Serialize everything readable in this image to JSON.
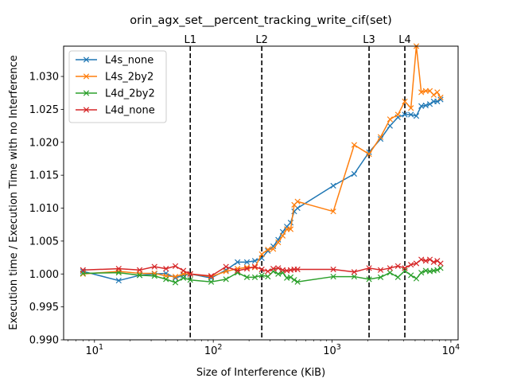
{
  "chart_data": {
    "type": "line",
    "title": "orin_agx_set__percent_tracking_write_cif(set)",
    "xlabel": "Size of Interference (KiB)",
    "ylabel": "Execution time / Execution Time with no Interference",
    "xscale": "log",
    "xlim": [
      5.5,
      11500
    ],
    "ylim": [
      0.99,
      1.0346
    ],
    "yticks": [
      "0.990",
      "0.995",
      "1.000",
      "1.005",
      "1.010",
      "1.015",
      "1.020",
      "1.025",
      "1.030"
    ],
    "xticks": [
      {
        "value": 10,
        "base": "10",
        "exp": "1"
      },
      {
        "value": 100,
        "base": "10",
        "exp": "2"
      },
      {
        "value": 1000,
        "base": "10",
        "exp": "3"
      },
      {
        "value": 10000,
        "base": "10",
        "exp": "4"
      }
    ],
    "grid": false,
    "legend_position": "top-left",
    "vlines": [
      {
        "label": "L1",
        "x": 64
      },
      {
        "label": "L2",
        "x": 256
      },
      {
        "label": "L3",
        "x": 2048
      },
      {
        "label": "L4",
        "x": 4096
      }
    ],
    "series": [
      {
        "name": "L4s_none",
        "color": "#1f77b4",
        "marker": "x",
        "points": [
          [
            8,
            1.0004
          ],
          [
            16,
            0.999
          ],
          [
            24,
            0.9998
          ],
          [
            32,
            1.0
          ],
          [
            40,
            1.0001
          ],
          [
            48,
            0.9994
          ],
          [
            56,
            0.9998
          ],
          [
            64,
            1.0
          ],
          [
            96,
            0.9994
          ],
          [
            128,
            1.0006
          ],
          [
            160,
            1.0018
          ],
          [
            192,
            1.0018
          ],
          [
            224,
            1.002
          ],
          [
            256,
            1.0024
          ],
          [
            288,
            1.0035
          ],
          [
            320,
            1.0042
          ],
          [
            352,
            1.0052
          ],
          [
            384,
            1.0064
          ],
          [
            416,
            1.0072
          ],
          [
            448,
            1.0078
          ],
          [
            480,
            1.0095
          ],
          [
            512,
            1.01
          ],
          [
            1024,
            1.0134
          ],
          [
            1536,
            1.0152
          ],
          [
            2048,
            1.0185
          ],
          [
            2560,
            1.0205
          ],
          [
            3072,
            1.0225
          ],
          [
            3584,
            1.0238
          ],
          [
            4096,
            1.0242
          ],
          [
            4608,
            1.0242
          ],
          [
            5120,
            1.024
          ],
          [
            5632,
            1.0255
          ],
          [
            6144,
            1.0256
          ],
          [
            6656,
            1.0258
          ],
          [
            7168,
            1.0262
          ],
          [
            7680,
            1.0262
          ],
          [
            8192,
            1.0265
          ]
        ]
      },
      {
        "name": "L4s_2by2",
        "color": "#ff7f0e",
        "marker": "x",
        "points": [
          [
            8,
            1.0
          ],
          [
            16,
            1.0004
          ],
          [
            24,
            1.0001
          ],
          [
            32,
            1.0001
          ],
          [
            40,
            0.9997
          ],
          [
            48,
            0.9996
          ],
          [
            56,
            1.0
          ],
          [
            64,
            1.0
          ],
          [
            96,
            0.9996
          ],
          [
            128,
            1.0004
          ],
          [
            160,
            1.0008
          ],
          [
            192,
            1.001
          ],
          [
            224,
            1.001
          ],
          [
            256,
            1.003
          ],
          [
            288,
            1.0037
          ],
          [
            320,
            1.0038
          ],
          [
            352,
            1.0048
          ],
          [
            384,
            1.0058
          ],
          [
            416,
            1.0068
          ],
          [
            448,
            1.0068
          ],
          [
            480,
            1.0105
          ],
          [
            512,
            1.011
          ],
          [
            1024,
            1.0095
          ],
          [
            1536,
            1.0196
          ],
          [
            2048,
            1.0182
          ],
          [
            2560,
            1.0208
          ],
          [
            3072,
            1.0235
          ],
          [
            3584,
            1.0242
          ],
          [
            4096,
            1.0262
          ],
          [
            4608,
            1.0252
          ],
          [
            5120,
            1.0346
          ],
          [
            5632,
            1.0276
          ],
          [
            6144,
            1.0278
          ],
          [
            6656,
            1.0278
          ],
          [
            7168,
            1.0272
          ],
          [
            7680,
            1.0276
          ],
          [
            8192,
            1.0268
          ]
        ]
      },
      {
        "name": "L4d_2by2",
        "color": "#2ca02c",
        "marker": "x",
        "points": [
          [
            8,
            1.0001
          ],
          [
            16,
            1.0002
          ],
          [
            24,
            0.9998
          ],
          [
            32,
            0.9997
          ],
          [
            40,
            0.9992
          ],
          [
            48,
            0.9987
          ],
          [
            56,
            0.9994
          ],
          [
            64,
            0.9991
          ],
          [
            96,
            0.9988
          ],
          [
            128,
            0.9992
          ],
          [
            160,
            1.0002
          ],
          [
            192,
            0.9995
          ],
          [
            224,
            0.9995
          ],
          [
            256,
            0.9998
          ],
          [
            288,
            0.9996
          ],
          [
            320,
            1.0004
          ],
          [
            352,
            1.0
          ],
          [
            384,
            1.0002
          ],
          [
            416,
            0.9994
          ],
          [
            448,
            0.9995
          ],
          [
            480,
            0.9991
          ],
          [
            512,
            0.9988
          ],
          [
            1024,
            0.9996
          ],
          [
            1536,
            0.9996
          ],
          [
            2048,
            0.9992
          ],
          [
            2560,
            0.9995
          ],
          [
            3072,
            1.0002
          ],
          [
            3584,
            0.9995
          ],
          [
            4096,
            1.0005
          ],
          [
            4608,
            0.9998
          ],
          [
            5120,
            0.9993
          ],
          [
            5632,
            1.0002
          ],
          [
            6144,
            1.0005
          ],
          [
            6656,
            1.0004
          ],
          [
            7168,
            1.0005
          ],
          [
            7680,
            1.0006
          ],
          [
            8192,
            1.0009
          ]
        ]
      },
      {
        "name": "L4d_none",
        "color": "#d62728",
        "marker": "x",
        "points": [
          [
            8,
            1.0006
          ],
          [
            16,
            1.0008
          ],
          [
            24,
            1.0006
          ],
          [
            32,
            1.0011
          ],
          [
            40,
            1.0008
          ],
          [
            48,
            1.0012
          ],
          [
            56,
            1.0005
          ],
          [
            64,
            1.0
          ],
          [
            96,
            0.9997
          ],
          [
            128,
            1.0011
          ],
          [
            160,
            1.0005
          ],
          [
            192,
            1.0008
          ],
          [
            224,
            1.0011
          ],
          [
            256,
            1.0007
          ],
          [
            288,
            1.0004
          ],
          [
            320,
            1.0008
          ],
          [
            352,
            1.0009
          ],
          [
            384,
            1.0006
          ],
          [
            416,
            1.0005
          ],
          [
            448,
            1.0006
          ],
          [
            480,
            1.0007
          ],
          [
            512,
            1.0007
          ],
          [
            1024,
            1.0007
          ],
          [
            1536,
            1.0003
          ],
          [
            2048,
            1.0009
          ],
          [
            2560,
            1.0006
          ],
          [
            3072,
            1.0009
          ],
          [
            3584,
            1.0012
          ],
          [
            4096,
            1.0009
          ],
          [
            4608,
            1.0014
          ],
          [
            5120,
            1.0016
          ],
          [
            5632,
            1.0022
          ],
          [
            6144,
            1.002
          ],
          [
            6656,
            1.0022
          ],
          [
            7168,
            1.0018
          ],
          [
            7680,
            1.002
          ],
          [
            8192,
            1.0016
          ]
        ]
      }
    ]
  }
}
